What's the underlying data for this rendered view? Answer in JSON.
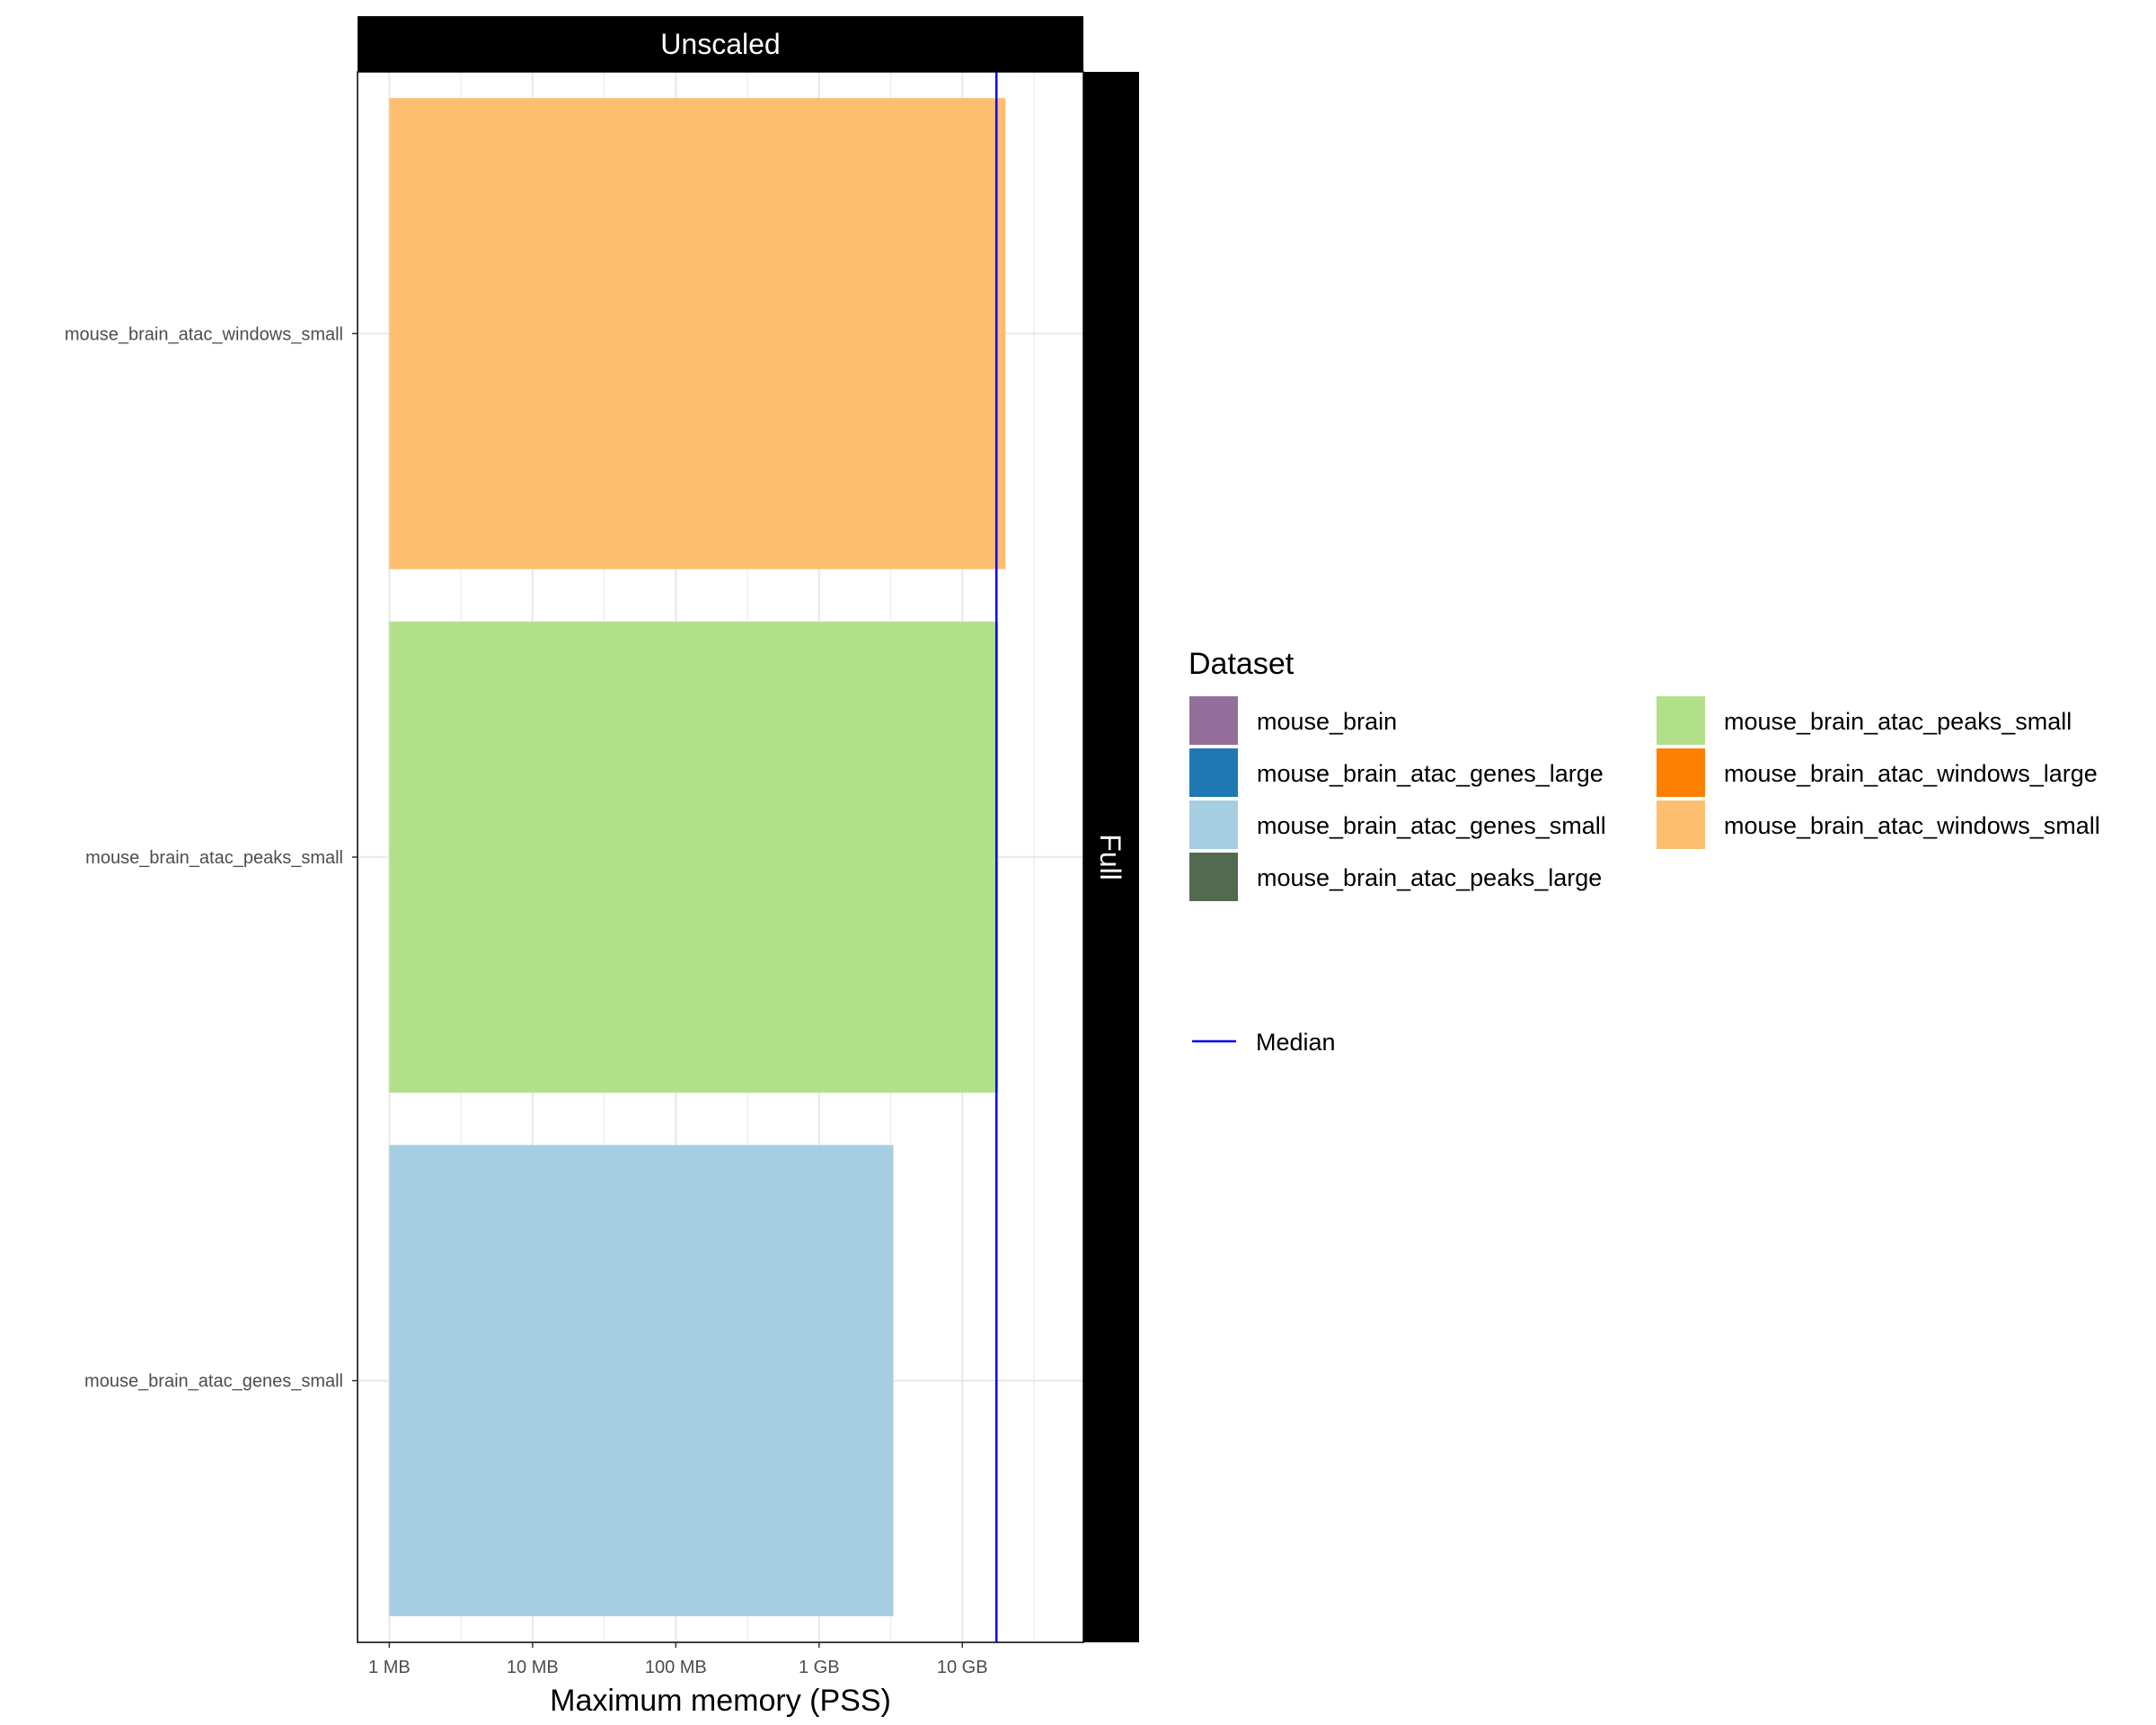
{
  "chart_data": {
    "type": "bar",
    "orientation": "horizontal",
    "facet_top": "Unscaled",
    "facet_right": "Full",
    "xlabel": "Maximum memory (PSS)",
    "x_scale": "log10",
    "x_unit": "bytes",
    "xlim": [
      600000,
      70000000000
    ],
    "x_ticks": [
      {
        "value": 1000000,
        "label": "1 MB"
      },
      {
        "value": 10000000,
        "label": "10 MB"
      },
      {
        "value": 100000000,
        "label": "100 MB"
      },
      {
        "value": 1000000000,
        "label": "1 GB"
      },
      {
        "value": 10000000000,
        "label": "10 GB"
      }
    ],
    "bar_base": 1000000,
    "categories": [
      "mouse_brain_atac_windows_small",
      "mouse_brain_atac_peaks_small",
      "mouse_brain_atac_genes_small"
    ],
    "values": [
      20000000000,
      17800000000,
      3300000000
    ],
    "bar_colors": [
      "#fdbf6f",
      "#b2df8a",
      "#a6cee3"
    ],
    "median": {
      "label": "Median",
      "value": 17300000000,
      "color": "#0000ee"
    },
    "grid": true,
    "legend": {
      "title": "Dataset",
      "placement": "right",
      "items": [
        {
          "label": "mouse_brain",
          "color": "#946f9b"
        },
        {
          "label": "mouse_brain_atac_genes_large",
          "color": "#1f78b4"
        },
        {
          "label": "mouse_brain_atac_genes_small",
          "color": "#a6cee3"
        },
        {
          "label": "mouse_brain_atac_peaks_large",
          "color": "#536a51"
        },
        {
          "label": "mouse_brain_atac_peaks_small",
          "color": "#b2df8a"
        },
        {
          "label": "mouse_brain_atac_windows_large",
          "color": "#ff7f00"
        },
        {
          "label": "mouse_brain_atac_windows_small",
          "color": "#fdbf6f"
        }
      ]
    }
  }
}
